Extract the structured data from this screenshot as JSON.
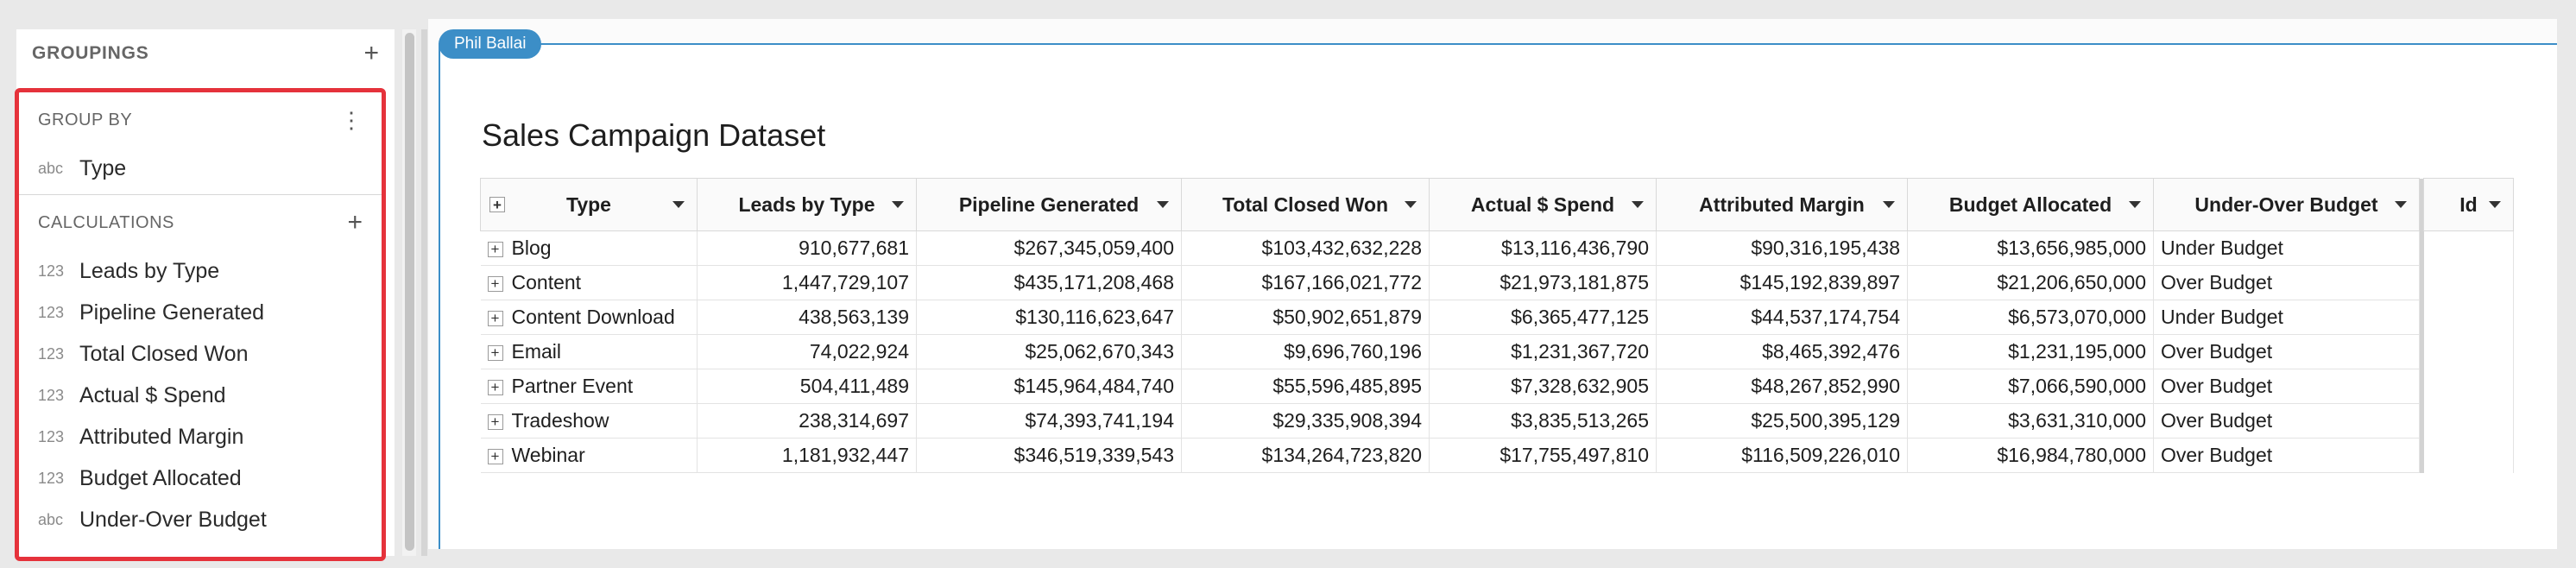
{
  "groupings": {
    "title": "GROUPINGS",
    "add_icon": "plus-icon",
    "group_by": {
      "title": "GROUP BY",
      "menu_icon": "kebab-icon",
      "fields": [
        {
          "type": "abc",
          "label": "Type"
        }
      ]
    },
    "calculations": {
      "title": "CALCULATIONS",
      "add_icon": "plus-icon",
      "fields": [
        {
          "type": "123",
          "label": "Leads by Type"
        },
        {
          "type": "123",
          "label": "Pipeline Generated"
        },
        {
          "type": "123",
          "label": "Total Closed Won"
        },
        {
          "type": "123",
          "label": "Actual $ Spend"
        },
        {
          "type": "123",
          "label": "Attributed Margin"
        },
        {
          "type": "123",
          "label": "Budget Allocated"
        },
        {
          "type": "abc",
          "label": "Under-Over Budget"
        }
      ]
    }
  },
  "canvas": {
    "user_badge": "Phil Ballai",
    "title": "Sales Campaign Dataset"
  },
  "table": {
    "columns": [
      "Type",
      "Leads by Type",
      "Pipeline Generated",
      "Total Closed Won",
      "Actual $ Spend",
      "Attributed Margin",
      "Budget Allocated",
      "Under-Over Budget"
    ],
    "extra_column": "Id",
    "rows": [
      [
        "Blog",
        "910,677,681",
        "$267,345,059,400",
        "$103,432,632,228",
        "$13,116,436,790",
        "$90,316,195,438",
        "$13,656,985,000",
        "Under Budget"
      ],
      [
        "Content",
        "1,447,729,107",
        "$435,171,208,468",
        "$167,166,021,772",
        "$21,973,181,875",
        "$145,192,839,897",
        "$21,206,650,000",
        "Over Budget"
      ],
      [
        "Content Download",
        "438,563,139",
        "$130,116,623,647",
        "$50,902,651,879",
        "$6,365,477,125",
        "$44,537,174,754",
        "$6,573,070,000",
        "Under Budget"
      ],
      [
        "Email",
        "74,022,924",
        "$25,062,670,343",
        "$9,696,760,196",
        "$1,231,367,720",
        "$8,465,392,476",
        "$1,231,195,000",
        "Over Budget"
      ],
      [
        "Partner Event",
        "504,411,489",
        "$145,964,484,740",
        "$55,596,485,895",
        "$7,328,632,905",
        "$48,267,852,990",
        "$7,066,590,000",
        "Over Budget"
      ],
      [
        "Tradeshow",
        "238,314,697",
        "$74,393,741,194",
        "$29,335,908,394",
        "$3,835,513,265",
        "$25,500,395,129",
        "$3,631,310,000",
        "Over Budget"
      ],
      [
        "Webinar",
        "1,181,932,447",
        "$346,519,339,543",
        "$134,264,723,820",
        "$17,755,497,810",
        "$116,509,226,010",
        "$16,984,780,000",
        "Over Budget"
      ]
    ]
  },
  "colors": {
    "accent": "#3c8ec7",
    "highlight": "#e5323b"
  }
}
